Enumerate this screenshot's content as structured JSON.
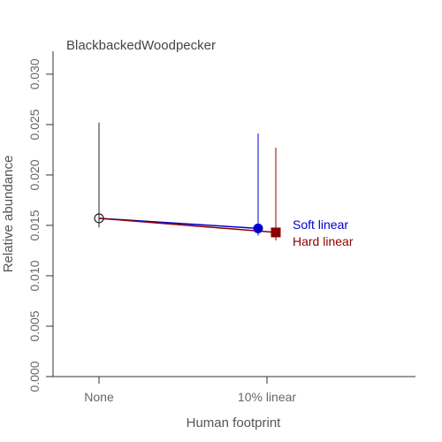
{
  "chart_data": {
    "type": "scatter",
    "title": "BlackbackedWoodpecker",
    "xlabel": "Human footprint",
    "ylabel": "Relative abundance",
    "categories": [
      "None",
      "10% linear"
    ],
    "ylim": [
      0,
      0.032
    ],
    "yticks": [
      "0.000",
      "0.005",
      "0.010",
      "0.015",
      "0.020",
      "0.025",
      "0.030"
    ],
    "grid": false,
    "reference": {
      "category": "None",
      "value": 0.0157,
      "lower": 0.0148,
      "upper": 0.0252
    },
    "series": [
      {
        "name": "Soft linear",
        "color": "#0000cc",
        "marker": "circle",
        "category": "10% linear",
        "value": 0.0147,
        "lower": 0.014,
        "upper": 0.0241
      },
      {
        "name": "Hard linear",
        "color": "#8b0000",
        "marker": "square",
        "category": "10% linear",
        "value": 0.0143,
        "lower": 0.0135,
        "upper": 0.0227
      }
    ]
  }
}
